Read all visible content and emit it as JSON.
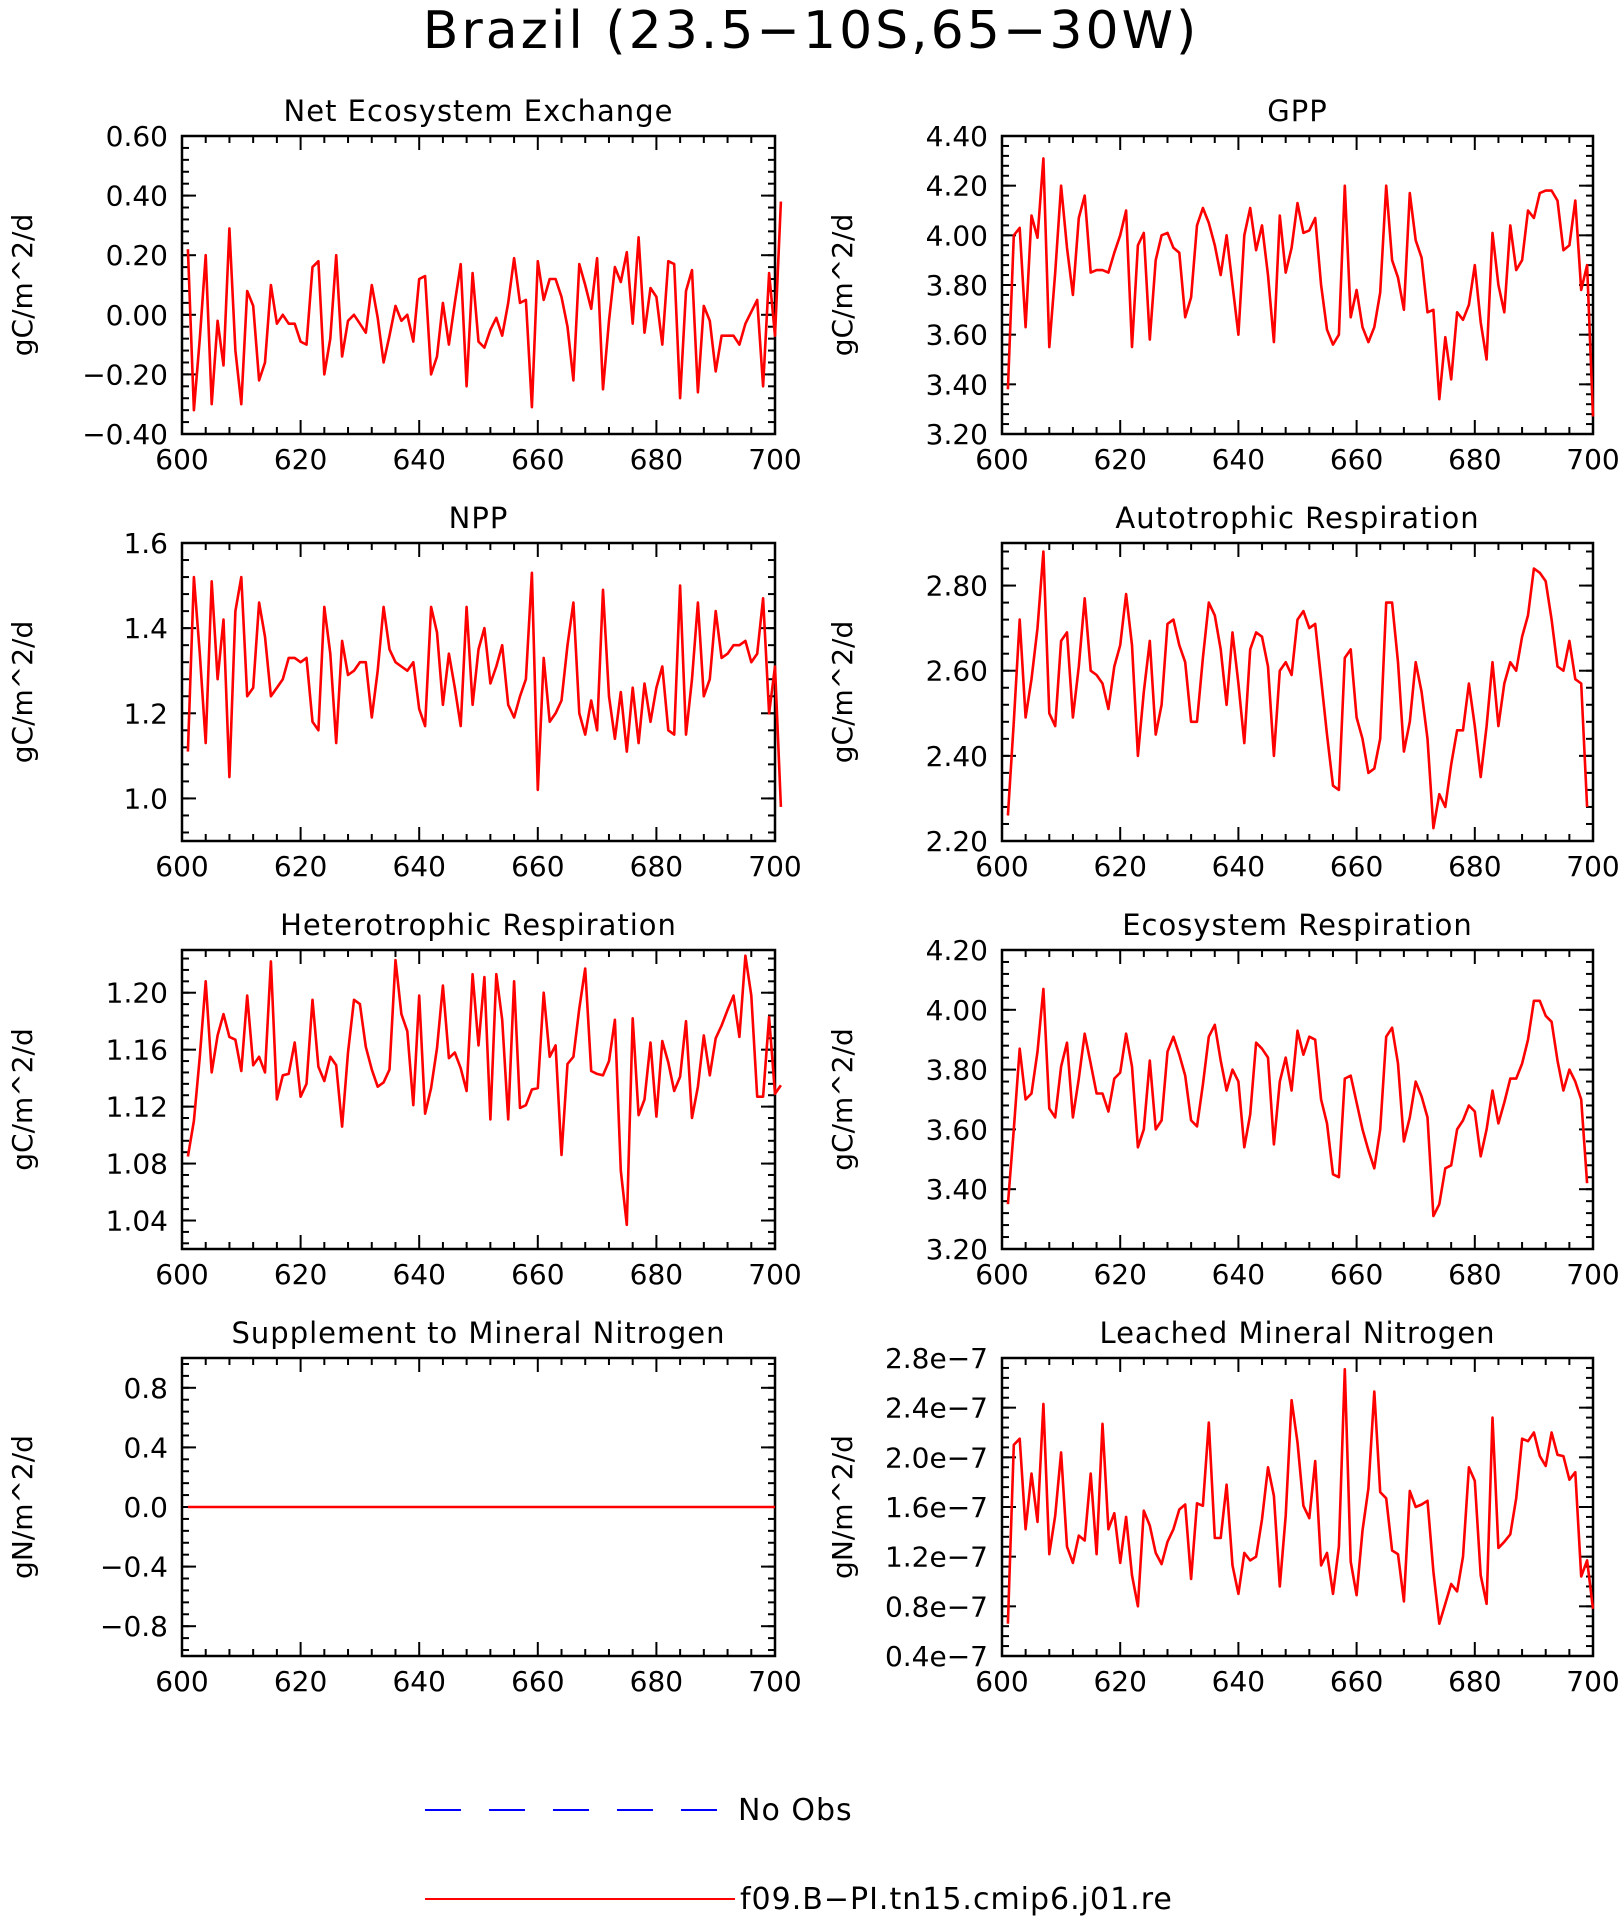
{
  "figure": {
    "title": "Brazil (23.5−10S,65−30W)",
    "series_color": "#ff0000",
    "obs_color": "#0000ff"
  },
  "legend": {
    "entries": [
      {
        "label": "No Obs",
        "color": "#0000ff",
        "style": "dashed"
      },
      {
        "label": "f09.B−PI.tn15.cmip6.j01.re",
        "color": "#ff0000",
        "style": "solid"
      }
    ]
  },
  "chart_data": [
    {
      "type": "line",
      "title": "Net Ecosystem Exchange",
      "xlabel": "",
      "ylabel": "gC/m^2/d",
      "xlim": [
        600,
        700
      ],
      "ylim": [
        -0.4,
        0.6
      ],
      "xticks": [
        "600",
        "620",
        "640",
        "660",
        "680",
        "700"
      ],
      "yticks": [
        {
          "v": -0.4,
          "label": "−0.40"
        },
        {
          "v": -0.2,
          "label": "−0.20"
        },
        {
          "v": 0.0,
          "label": "0.00"
        },
        {
          "v": 0.2,
          "label": "0.20"
        },
        {
          "v": 0.4,
          "label": "0.40"
        },
        {
          "v": 0.6,
          "label": "0.60"
        }
      ],
      "x_start": 601,
      "values": [
        0.22,
        -0.32,
        -0.08,
        0.2,
        -0.3,
        -0.02,
        -0.17,
        0.29,
        -0.12,
        -0.3,
        0.08,
        0.03,
        -0.22,
        -0.16,
        0.1,
        -0.03,
        0.0,
        -0.03,
        -0.03,
        -0.09,
        -0.1,
        0.16,
        0.18,
        -0.2,
        -0.08,
        0.2,
        -0.14,
        -0.02,
        0.0,
        -0.03,
        -0.06,
        0.1,
        -0.01,
        -0.16,
        -0.07,
        0.03,
        -0.02,
        0.0,
        -0.09,
        0.12,
        0.13,
        -0.2,
        -0.14,
        0.04,
        -0.1,
        0.04,
        0.17,
        -0.24,
        0.14,
        -0.09,
        -0.11,
        -0.05,
        -0.01,
        -0.07,
        0.04,
        0.19,
        0.04,
        0.05,
        -0.31,
        0.18,
        0.05,
        0.12,
        0.12,
        0.06,
        -0.04,
        -0.22,
        0.17,
        0.1,
        0.02,
        0.19,
        -0.25,
        -0.02,
        0.16,
        0.11,
        0.21,
        -0.03,
        0.26,
        -0.06,
        0.09,
        0.06,
        -0.1,
        0.18,
        0.17,
        -0.28,
        0.08,
        0.15,
        -0.26,
        0.03,
        -0.02,
        -0.19,
        -0.07,
        -0.07,
        -0.07,
        -0.1,
        -0.03,
        0.01,
        0.05,
        -0.24,
        0.14,
        -0.07,
        0.38
      ]
    },
    {
      "type": "line",
      "title": "GPP",
      "xlabel": "",
      "ylabel": "gC/m^2/d",
      "xlim": [
        600,
        700
      ],
      "ylim": [
        3.2,
        4.4
      ],
      "xticks": [
        "600",
        "620",
        "640",
        "660",
        "680",
        "700"
      ],
      "yticks": [
        {
          "v": 3.2,
          "label": "3.20"
        },
        {
          "v": 3.4,
          "label": "3.40"
        },
        {
          "v": 3.6,
          "label": "3.60"
        },
        {
          "v": 3.8,
          "label": "3.80"
        },
        {
          "v": 4.0,
          "label": "4.00"
        },
        {
          "v": 4.2,
          "label": "4.20"
        },
        {
          "v": 4.4,
          "label": "4.40"
        }
      ],
      "x_start": 601,
      "values": [
        3.38,
        4.0,
        4.03,
        3.63,
        4.08,
        3.99,
        4.31,
        3.55,
        3.85,
        4.2,
        3.95,
        3.76,
        4.07,
        4.16,
        3.85,
        3.86,
        3.86,
        3.85,
        3.93,
        4.0,
        4.1,
        3.55,
        3.96,
        4.01,
        3.58,
        3.9,
        4.0,
        4.01,
        3.95,
        3.93,
        3.67,
        3.75,
        4.04,
        4.11,
        4.05,
        3.96,
        3.84,
        4.0,
        3.8,
        3.6,
        4.0,
        4.11,
        3.94,
        4.04,
        3.84,
        3.57,
        4.08,
        3.85,
        3.95,
        4.13,
        4.01,
        4.02,
        4.07,
        3.8,
        3.62,
        3.56,
        3.6,
        4.2,
        3.67,
        3.78,
        3.63,
        3.57,
        3.63,
        3.77,
        4.2,
        3.9,
        3.83,
        3.7,
        4.17,
        3.98,
        3.91,
        3.69,
        3.7,
        3.34,
        3.59,
        3.42,
        3.69,
        3.66,
        3.72,
        3.88,
        3.65,
        3.5,
        4.01,
        3.8,
        3.69,
        4.04,
        3.86,
        3.9,
        4.1,
        4.07,
        4.17,
        4.18,
        4.18,
        4.14,
        3.94,
        3.96,
        4.14,
        3.78,
        3.88,
        3.27
      ]
    },
    {
      "type": "line",
      "title": "NPP",
      "xlabel": "",
      "ylabel": "gC/m^2/d",
      "xlim": [
        600,
        700
      ],
      "ylim": [
        0.9,
        1.6
      ],
      "xticks": [
        "600",
        "620",
        "640",
        "660",
        "680",
        "700"
      ],
      "yticks": [
        {
          "v": 1.0,
          "label": "1.0"
        },
        {
          "v": 1.2,
          "label": "1.2"
        },
        {
          "v": 1.4,
          "label": "1.4"
        },
        {
          "v": 1.6,
          "label": "1.6"
        }
      ],
      "x_start": 601,
      "values": [
        1.11,
        1.52,
        1.34,
        1.13,
        1.51,
        1.28,
        1.42,
        1.05,
        1.44,
        1.52,
        1.24,
        1.26,
        1.46,
        1.38,
        1.24,
        1.26,
        1.28,
        1.33,
        1.33,
        1.32,
        1.33,
        1.18,
        1.16,
        1.45,
        1.34,
        1.13,
        1.37,
        1.29,
        1.3,
        1.32,
        1.32,
        1.19,
        1.3,
        1.45,
        1.35,
        1.32,
        1.31,
        1.3,
        1.32,
        1.21,
        1.17,
        1.45,
        1.39,
        1.22,
        1.34,
        1.26,
        1.17,
        1.45,
        1.22,
        1.35,
        1.4,
        1.27,
        1.31,
        1.36,
        1.22,
        1.19,
        1.24,
        1.28,
        1.53,
        1.02,
        1.33,
        1.18,
        1.2,
        1.23,
        1.36,
        1.46,
        1.2,
        1.15,
        1.23,
        1.16,
        1.49,
        1.24,
        1.14,
        1.25,
        1.11,
        1.26,
        1.13,
        1.27,
        1.18,
        1.26,
        1.31,
        1.16,
        1.15,
        1.5,
        1.15,
        1.28,
        1.46,
        1.24,
        1.28,
        1.44,
        1.33,
        1.34,
        1.36,
        1.36,
        1.37,
        1.32,
        1.34,
        1.47,
        1.2,
        1.31,
        0.98
      ]
    },
    {
      "type": "line",
      "title": "Autotrophic Respiration",
      "xlabel": "",
      "ylabel": "gC/m^2/d",
      "xlim": [
        600,
        700
      ],
      "ylim": [
        2.2,
        2.9
      ],
      "xticks": [
        "600",
        "620",
        "640",
        "660",
        "680",
        "700"
      ],
      "yticks": [
        {
          "v": 2.2,
          "label": "2.20"
        },
        {
          "v": 2.4,
          "label": "2.40"
        },
        {
          "v": 2.6,
          "label": "2.60"
        },
        {
          "v": 2.8,
          "label": "2.80"
        }
      ],
      "x_start": 601,
      "values": [
        2.26,
        2.48,
        2.72,
        2.49,
        2.58,
        2.7,
        2.88,
        2.5,
        2.47,
        2.67,
        2.69,
        2.49,
        2.61,
        2.77,
        2.6,
        2.59,
        2.57,
        2.51,
        2.61,
        2.66,
        2.78,
        2.66,
        2.4,
        2.55,
        2.67,
        2.45,
        2.52,
        2.71,
        2.72,
        2.66,
        2.62,
        2.48,
        2.48,
        2.63,
        2.76,
        2.73,
        2.65,
        2.52,
        2.69,
        2.57,
        2.43,
        2.65,
        2.69,
        2.68,
        2.61,
        2.4,
        2.6,
        2.62,
        2.59,
        2.72,
        2.74,
        2.7,
        2.71,
        2.58,
        2.45,
        2.33,
        2.32,
        2.63,
        2.65,
        2.49,
        2.44,
        2.36,
        2.37,
        2.44,
        2.76,
        2.76,
        2.62,
        2.41,
        2.48,
        2.62,
        2.55,
        2.44,
        2.23,
        2.31,
        2.28,
        2.38,
        2.46,
        2.46,
        2.57,
        2.47,
        2.35,
        2.47,
        2.62,
        2.47,
        2.57,
        2.62,
        2.6,
        2.68,
        2.73,
        2.84,
        2.83,
        2.81,
        2.72,
        2.61,
        2.6,
        2.67,
        2.58,
        2.57,
        2.28
      ]
    },
    {
      "type": "line",
      "title": "Heterotrophic Respiration",
      "xlabel": "",
      "ylabel": "gC/m^2/d",
      "xlim": [
        600,
        700
      ],
      "ylim": [
        1.02,
        1.23
      ],
      "xticks": [
        "600",
        "620",
        "640",
        "660",
        "680",
        "700"
      ],
      "yticks": [
        {
          "v": 1.04,
          "label": "1.04"
        },
        {
          "v": 1.08,
          "label": "1.08"
        },
        {
          "v": 1.12,
          "label": "1.12"
        },
        {
          "v": 1.16,
          "label": "1.16"
        },
        {
          "v": 1.2,
          "label": "1.20"
        }
      ],
      "x_start": 601,
      "values": [
        1.085,
        1.11,
        1.155,
        1.208,
        1.144,
        1.17,
        1.185,
        1.169,
        1.167,
        1.145,
        1.198,
        1.149,
        1.155,
        1.144,
        1.222,
        1.125,
        1.142,
        1.143,
        1.165,
        1.127,
        1.136,
        1.195,
        1.148,
        1.138,
        1.155,
        1.149,
        1.106,
        1.158,
        1.195,
        1.192,
        1.162,
        1.146,
        1.134,
        1.137,
        1.146,
        1.223,
        1.185,
        1.173,
        1.121,
        1.198,
        1.115,
        1.133,
        1.161,
        1.205,
        1.154,
        1.158,
        1.147,
        1.131,
        1.213,
        1.163,
        1.211,
        1.111,
        1.213,
        1.181,
        1.111,
        1.208,
        1.119,
        1.121,
        1.132,
        1.133,
        1.2,
        1.155,
        1.163,
        1.086,
        1.15,
        1.155,
        1.189,
        1.217,
        1.145,
        1.143,
        1.142,
        1.152,
        1.181,
        1.075,
        1.037,
        1.182,
        1.114,
        1.125,
        1.165,
        1.113,
        1.166,
        1.151,
        1.131,
        1.141,
        1.18,
        1.112,
        1.134,
        1.17,
        1.142,
        1.168,
        1.177,
        1.188,
        1.198,
        1.169,
        1.226,
        1.198,
        1.127,
        1.127,
        1.183,
        1.129,
        1.135
      ]
    },
    {
      "type": "line",
      "title": "Ecosystem Respiration",
      "xlabel": "",
      "ylabel": "gC/m^2/d",
      "xlim": [
        600,
        700
      ],
      "ylim": [
        3.2,
        4.2
      ],
      "xticks": [
        "600",
        "620",
        "640",
        "660",
        "680",
        "700"
      ],
      "yticks": [
        {
          "v": 3.2,
          "label": "3.20"
        },
        {
          "v": 3.4,
          "label": "3.40"
        },
        {
          "v": 3.6,
          "label": "3.60"
        },
        {
          "v": 3.8,
          "label": "3.80"
        },
        {
          "v": 4.0,
          "label": "4.00"
        },
        {
          "v": 4.2,
          "label": "4.20"
        }
      ],
      "x_start": 601,
      "values": [
        3.35,
        3.6,
        3.87,
        3.7,
        3.72,
        3.86,
        4.07,
        3.67,
        3.64,
        3.81,
        3.89,
        3.64,
        3.77,
        3.92,
        3.82,
        3.72,
        3.72,
        3.66,
        3.77,
        3.79,
        3.92,
        3.81,
        3.54,
        3.6,
        3.83,
        3.6,
        3.63,
        3.86,
        3.91,
        3.85,
        3.78,
        3.63,
        3.61,
        3.75,
        3.91,
        3.95,
        3.83,
        3.73,
        3.8,
        3.76,
        3.54,
        3.65,
        3.89,
        3.87,
        3.84,
        3.55,
        3.76,
        3.84,
        3.73,
        3.93,
        3.85,
        3.91,
        3.9,
        3.7,
        3.62,
        3.45,
        3.44,
        3.77,
        3.78,
        3.69,
        3.6,
        3.53,
        3.47,
        3.6,
        3.91,
        3.94,
        3.82,
        3.56,
        3.64,
        3.76,
        3.71,
        3.64,
        3.31,
        3.35,
        3.47,
        3.48,
        3.6,
        3.63,
        3.68,
        3.66,
        3.51,
        3.6,
        3.73,
        3.62,
        3.69,
        3.77,
        3.77,
        3.82,
        3.9,
        4.03,
        4.03,
        3.98,
        3.96,
        3.83,
        3.73,
        3.8,
        3.76,
        3.7,
        3.42
      ]
    },
    {
      "type": "line",
      "title": "Supplement to Mineral Nitrogen",
      "xlabel": "",
      "ylabel": "gN/m^2/d",
      "xlim": [
        600,
        700
      ],
      "ylim": [
        -1.0,
        1.0
      ],
      "xticks": [
        "600",
        "620",
        "640",
        "660",
        "680",
        "700"
      ],
      "yticks": [
        {
          "v": -0.8,
          "label": "−0.8"
        },
        {
          "v": -0.4,
          "label": "−0.4"
        },
        {
          "v": 0.0,
          "label": "0.0"
        },
        {
          "v": 0.4,
          "label": "0.4"
        },
        {
          "v": 0.8,
          "label": "0.8"
        }
      ],
      "x_start": 601,
      "values": [
        0,
        0,
        0,
        0,
        0,
        0,
        0,
        0,
        0,
        0,
        0,
        0,
        0,
        0,
        0,
        0,
        0,
        0,
        0,
        0,
        0,
        0,
        0,
        0,
        0,
        0,
        0,
        0,
        0,
        0,
        0,
        0,
        0,
        0,
        0,
        0,
        0,
        0,
        0,
        0,
        0,
        0,
        0,
        0,
        0,
        0,
        0,
        0,
        0,
        0,
        0,
        0,
        0,
        0,
        0,
        0,
        0,
        0,
        0,
        0,
        0,
        0,
        0,
        0,
        0,
        0,
        0,
        0,
        0,
        0,
        0,
        0,
        0,
        0,
        0,
        0,
        0,
        0,
        0,
        0,
        0,
        0,
        0,
        0,
        0,
        0,
        0,
        0,
        0,
        0,
        0,
        0,
        0,
        0,
        0,
        0,
        0,
        0,
        0,
        0
      ]
    },
    {
      "type": "line",
      "title": "Leached Mineral Nitrogen",
      "xlabel": "",
      "ylabel": "gN/m^2/d",
      "xlim": [
        600,
        700
      ],
      "ylim": [
        4e-08,
        2.8e-07
      ],
      "xticks": [
        "600",
        "620",
        "640",
        "660",
        "680",
        "700"
      ],
      "yticks": [
        {
          "v": 4e-08,
          "label": "0.4e−7"
        },
        {
          "v": 8e-08,
          "label": "0.8e−7"
        },
        {
          "v": 1.2e-07,
          "label": "1.2e−7"
        },
        {
          "v": 1.6e-07,
          "label": "1.6e−7"
        },
        {
          "v": 2e-07,
          "label": "2.0e−7"
        },
        {
          "v": 2.4e-07,
          "label": "2.4e−7"
        },
        {
          "v": 2.8e-07,
          "label": "2.8e−7"
        }
      ],
      "x_start": 601,
      "values": [
        6.6e-08,
        2.1e-07,
        2.15e-07,
        1.42e-07,
        1.87e-07,
        1.48e-07,
        2.43e-07,
        1.22e-07,
        1.53e-07,
        2.04e-07,
        1.28e-07,
        1.15e-07,
        1.37e-07,
        1.33e-07,
        1.87e-07,
        1.22e-07,
        2.27e-07,
        1.42e-07,
        1.55e-07,
        1.15e-07,
        1.52e-07,
        1.05e-07,
        8e-08,
        1.57e-07,
        1.45e-07,
        1.23e-07,
        1.14e-07,
        1.32e-07,
        1.42e-07,
        1.58e-07,
        1.62e-07,
        1.02e-07,
        1.63e-07,
        1.61e-07,
        2.28e-07,
        1.35e-07,
        1.35e-07,
        1.78e-07,
        1.13e-07,
        9e-08,
        1.23e-07,
        1.17e-07,
        1.2e-07,
        1.5e-07,
        1.92e-07,
        1.69e-07,
        9.6e-08,
        1.53e-07,
        2.46e-07,
        2.12e-07,
        1.61e-07,
        1.51e-07,
        1.97e-07,
        1.13e-07,
        1.23e-07,
        9e-08,
        1.28e-07,
        2.71e-07,
        1.16e-07,
        8.9e-08,
        1.41e-07,
        1.75e-07,
        2.53e-07,
        1.72e-07,
        1.67e-07,
        1.25e-07,
        1.22e-07,
        8.4e-08,
        1.73e-07,
        1.6e-07,
        1.62e-07,
        1.65e-07,
        1.08e-07,
        6.6e-08,
        8.2e-08,
        9.8e-08,
        9.2e-08,
        1.2e-07,
        1.92e-07,
        1.81e-07,
        1.05e-07,
        8.2e-08,
        2.32e-07,
        1.27e-07,
        1.32e-07,
        1.38e-07,
        1.67e-07,
        2.15e-07,
        2.13e-07,
        2.2e-07,
        2.01e-07,
        1.93e-07,
        2.2e-07,
        2.02e-07,
        2.01e-07,
        1.82e-07,
        1.88e-07,
        1.04e-07,
        1.17e-07,
        7.8e-08
      ]
    }
  ]
}
